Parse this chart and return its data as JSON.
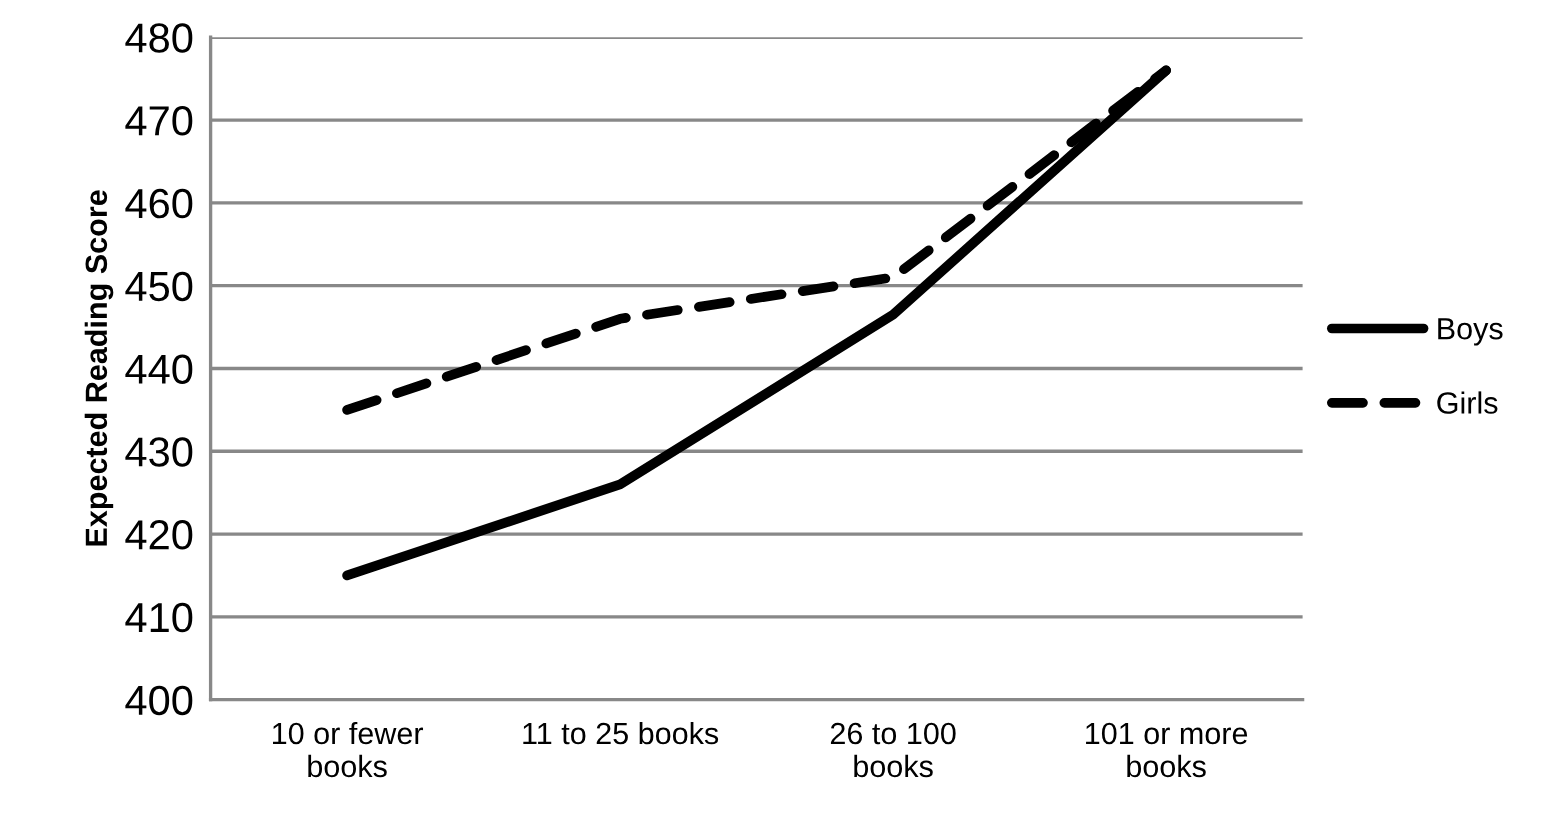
{
  "chart_data": {
    "type": "line",
    "ylabel": "Expected Reading Score",
    "categories": [
      "10 or fewer\nbooks",
      "11 to 25 books",
      "26 to 100\nbooks",
      "101 or more\nbooks"
    ],
    "series": [
      {
        "name": "Boys",
        "color": "#000000",
        "values": [
          415,
          426,
          446.5,
          476
        ],
        "line_style": "solid"
      },
      {
        "name": "Girls",
        "color": "#000000",
        "values": [
          435,
          446,
          451,
          476
        ],
        "line_style": "dashed"
      }
    ],
    "ylim": [
      400,
      480
    ],
    "yticks": [
      400,
      410,
      420,
      430,
      440,
      450,
      460,
      470,
      480
    ],
    "grid": "y",
    "legend": "right",
    "marker": "none"
  }
}
